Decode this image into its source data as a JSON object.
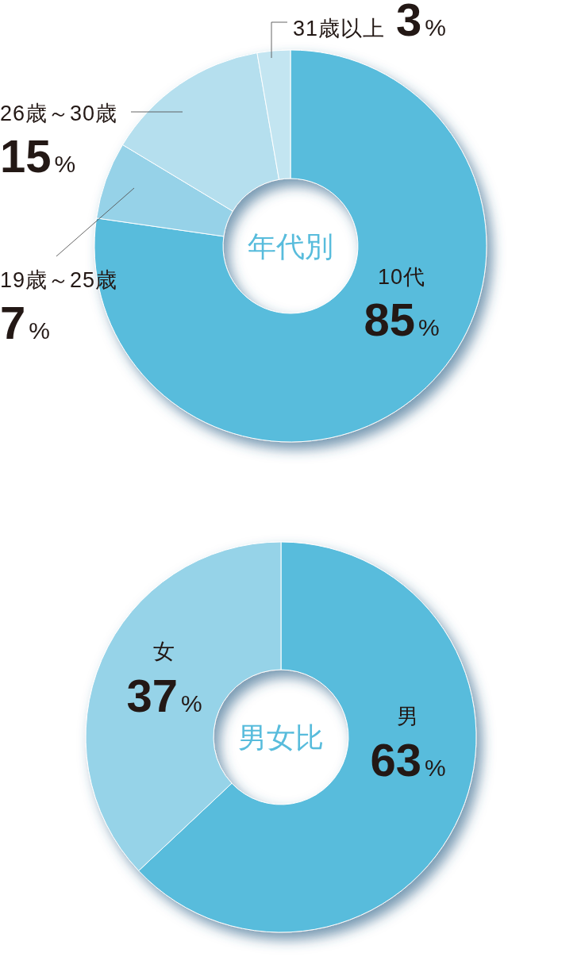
{
  "chart_data": [
    {
      "type": "donut",
      "title": "年代別",
      "categories": [
        "10代",
        "19歳～25歳",
        "26歳～30歳",
        "31歳以上"
      ],
      "values": [
        85,
        7,
        15,
        3
      ],
      "colors": [
        "#58bcdc",
        "#96d2e8",
        "#b5dfee",
        "#c3e5f1"
      ],
      "value_labels": [
        "85%",
        "7%",
        "15%",
        "3%"
      ]
    },
    {
      "type": "donut",
      "title": "男女比",
      "categories": [
        "男",
        "女"
      ],
      "values": [
        63,
        37
      ],
      "colors": [
        "#58bcdc",
        "#96d3e8"
      ],
      "value_labels": [
        "63%",
        "37%"
      ]
    }
  ]
}
